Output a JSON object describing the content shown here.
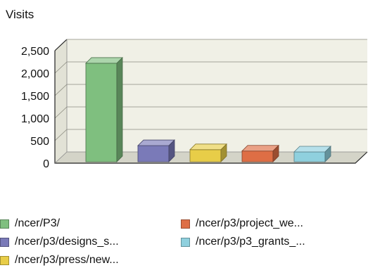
{
  "chart_data": {
    "type": "bar",
    "ylabel": "Visits",
    "ylim": [
      0,
      2500
    ],
    "yticks": [
      0,
      500,
      1000,
      1500,
      2000,
      2500
    ],
    "ytick_labels": [
      "0",
      "500",
      "1,000",
      "1,500",
      "2,000",
      "2,500"
    ],
    "grid": true,
    "legend_position": "bottom",
    "series": [
      {
        "name": "/ncer/P3/",
        "value": 2220,
        "color": "#7fbf7f"
      },
      {
        "name": "/ncer/p3/designs_s...",
        "value": 390,
        "color": "#7a7ab8"
      },
      {
        "name": "/ncer/p3/press/new...",
        "value": 300,
        "color": "#e8cd48"
      },
      {
        "name": "/ncer/p3/project_we...",
        "value": 270,
        "color": "#de6e45"
      },
      {
        "name": "/ncer/p3/p3_grants_...",
        "value": 250,
        "color": "#8fd0de"
      }
    ]
  }
}
